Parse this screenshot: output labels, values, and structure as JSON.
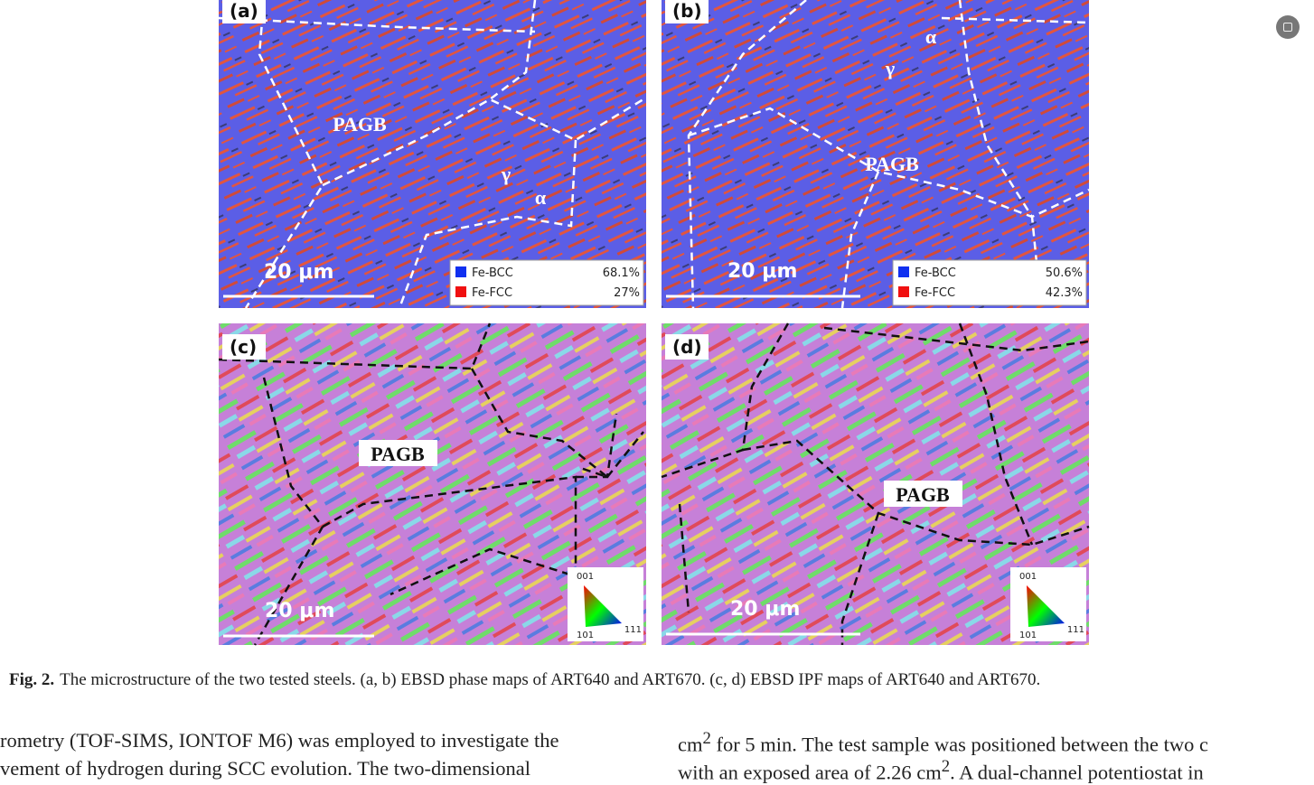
{
  "panels": [
    {
      "label": "(a)",
      "annotations": [
        "PAGB",
        "γ",
        "α"
      ],
      "scale_bar": "20 μm",
      "legend": [
        {
          "name": "Fe-BCC",
          "value": "68.1%"
        },
        {
          "name": "Fe-FCC",
          "value": "27%"
        }
      ]
    },
    {
      "label": "(b)",
      "annotations": [
        "α",
        "γ",
        "PAGB"
      ],
      "scale_bar": "20 μm",
      "legend": [
        {
          "name": "Fe-BCC",
          "value": "50.6%"
        },
        {
          "name": "Fe-FCC",
          "value": "42.3%"
        }
      ]
    },
    {
      "label": "(c)",
      "annotations": [
        "PAGB"
      ],
      "scale_bar": "20 μm",
      "ipf": [
        "001",
        "101",
        "111"
      ]
    },
    {
      "label": "(d)",
      "annotations": [
        "PAGB"
      ],
      "scale_bar": "20 μm",
      "ipf": [
        "001",
        "101",
        "111"
      ]
    }
  ],
  "caption": {
    "label": "Fig. 2.",
    "text": "The microstructure of the two tested steels. (a, b) EBSD phase maps of ART640 and ART670. (c, d) EBSD IPF maps of ART640 and ART670."
  },
  "body": {
    "left": [
      "rometry (TOF-SIMS, IONTOF M6) was employed to investigate the",
      "vement of hydrogen during SCC evolution. The two-dimensional"
    ],
    "right": [
      [
        "cm",
        "2",
        " for 5 min. The test sample was positioned between the two c"
      ],
      [
        "with an exposed area of 2.26 cm",
        "2",
        ". A dual-channel potentiostat in"
      ]
    ]
  }
}
